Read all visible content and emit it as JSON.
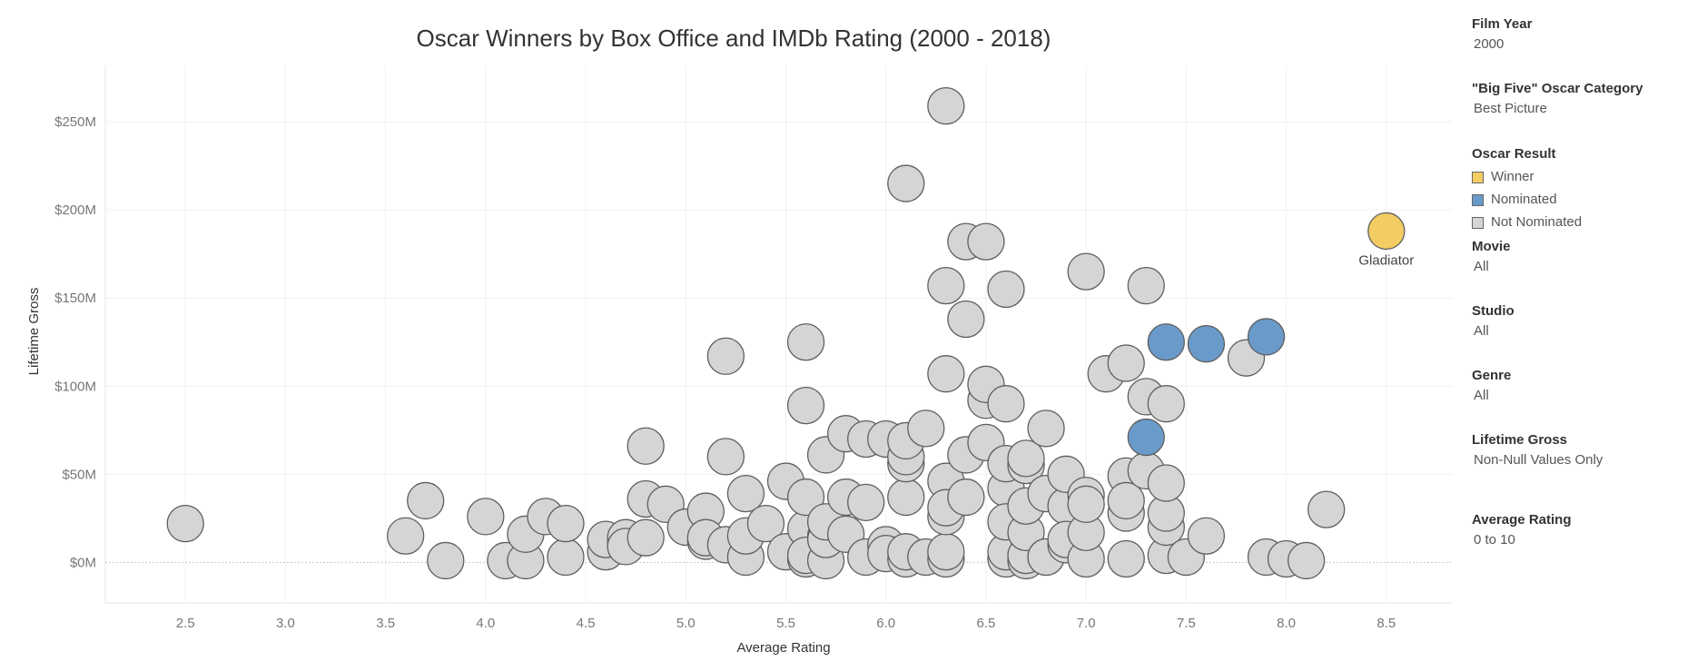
{
  "chart_data": {
    "type": "scatter",
    "title": "Oscar Winners by Box Office and IMDb Rating (2000 - 2018)",
    "xlabel": "Average Rating",
    "ylabel": "Lifetime Gross",
    "xlim": [
      2.1,
      8.9
    ],
    "ylim": [
      -23,
      282
    ],
    "x_ticks": [
      2.5,
      3.0,
      3.5,
      4.0,
      4.5,
      5.0,
      5.5,
      6.0,
      6.5,
      7.0,
      7.5,
      8.0,
      8.5
    ],
    "x_tick_labels": [
      "2.5",
      "3.0",
      "3.5",
      "4.0",
      "4.5",
      "5.0",
      "5.5",
      "6.0",
      "6.5",
      "7.0",
      "7.5",
      "8.0",
      "8.5"
    ],
    "y_ticks": [
      0,
      50,
      100,
      150,
      200,
      250
    ],
    "y_tick_labels": [
      "$0M",
      "$50M",
      "$100M",
      "$150M",
      "$200M",
      "$250M"
    ],
    "y_unit": "millions USD",
    "grid": true,
    "colors": {
      "Winner": "#f3cd63",
      "Nominated": "#6a9ac9",
      "Not Nominated": "#d5d5d5"
    },
    "series": [
      {
        "name": "Not Nominated",
        "x": [
          2.5,
          3.6,
          3.7,
          3.8,
          4.0,
          4.1,
          4.2,
          4.2,
          4.3,
          4.4,
          4.4,
          4.6,
          4.6,
          4.7,
          4.7,
          4.7,
          4.8,
          4.8,
          4.8,
          4.9,
          5.0,
          5.1,
          5.1,
          5.1,
          5.2,
          5.2,
          5.2,
          5.3,
          5.3,
          5.3,
          5.4,
          5.5,
          5.5,
          5.6,
          5.6,
          5.6,
          5.6,
          5.6,
          5.6,
          5.7,
          5.7,
          5.7,
          5.7,
          5.7,
          5.8,
          5.8,
          5.8,
          5.9,
          5.9,
          5.9,
          6.0,
          6.0,
          6.0,
          6.1,
          6.1,
          6.1,
          6.1,
          6.1,
          6.1,
          6.1,
          6.2,
          6.2,
          6.3,
          6.3,
          6.3,
          6.3,
          6.3,
          6.3,
          6.3,
          6.3,
          6.4,
          6.4,
          6.4,
          6.4,
          6.5,
          6.5,
          6.5,
          6.5,
          6.6,
          6.6,
          6.6,
          6.6,
          6.6,
          6.6,
          6.6,
          6.7,
          6.7,
          6.7,
          6.7,
          6.7,
          6.7,
          6.8,
          6.8,
          6.8,
          6.8,
          6.9,
          6.9,
          6.9,
          6.9,
          7.0,
          7.0,
          7.0,
          7.0,
          7.0,
          7.1,
          7.2,
          7.2,
          7.2,
          7.2,
          7.2,
          7.3,
          7.3,
          7.3,
          7.4,
          7.4,
          7.4,
          7.4,
          7.4,
          7.5,
          7.6,
          7.8,
          7.9,
          8.0,
          8.1,
          8.2
        ],
        "y": [
          22,
          15,
          35,
          1,
          26,
          1,
          1,
          16,
          26,
          3,
          22,
          6,
          13,
          11,
          14,
          9,
          14,
          36,
          66,
          33,
          20,
          12,
          29,
          14,
          10,
          60,
          117,
          3,
          15,
          39,
          22,
          6,
          46,
          2,
          19,
          37,
          4,
          89,
          125,
          1,
          15,
          13,
          23,
          61,
          16,
          73,
          37,
          3,
          34,
          70,
          10,
          70,
          5,
          2,
          6,
          37,
          56,
          60,
          69,
          215,
          3,
          76,
          2,
          6,
          26,
          46,
          31,
          107,
          157,
          259,
          61,
          37,
          138,
          182,
          68,
          92,
          101,
          182,
          2,
          6,
          42,
          23,
          56,
          90,
          155,
          1,
          4,
          17,
          32,
          55,
          59,
          3,
          39,
          76,
          3,
          10,
          32,
          50,
          13,
          2,
          17,
          38,
          33,
          165,
          107,
          2,
          28,
          49,
          35,
          113,
          94,
          157,
          52,
          4,
          20,
          28,
          45,
          90,
          3,
          15,
          116,
          3,
          2,
          1,
          30
        ]
      },
      {
        "name": "Nominated",
        "x": [
          7.3,
          7.4,
          7.6,
          7.9
        ],
        "y": [
          71,
          125,
          124,
          128
        ]
      },
      {
        "name": "Winner",
        "x": [
          8.5
        ],
        "y": [
          188
        ],
        "labels": [
          "Gladiator"
        ]
      }
    ]
  },
  "filters": [
    {
      "label": "Film Year",
      "value": "2000"
    },
    {
      "label": "\"Big Five\" Oscar Category",
      "value": "Best Picture"
    }
  ],
  "legend": {
    "title": "Oscar Result",
    "items": [
      {
        "label": "Winner",
        "color": "#f3cd63"
      },
      {
        "label": "Nominated",
        "color": "#6a9ac9"
      },
      {
        "label": "Not Nominated",
        "color": "#d5d5d5"
      }
    ]
  },
  "filters2": [
    {
      "label": "Movie",
      "value": "All"
    },
    {
      "label": "Studio",
      "value": "All"
    },
    {
      "label": "Genre",
      "value": "All"
    },
    {
      "label": "Lifetime Gross",
      "value": "Non-Null Values Only"
    },
    {
      "label": "Average Rating",
      "value": "0 to 10"
    }
  ]
}
